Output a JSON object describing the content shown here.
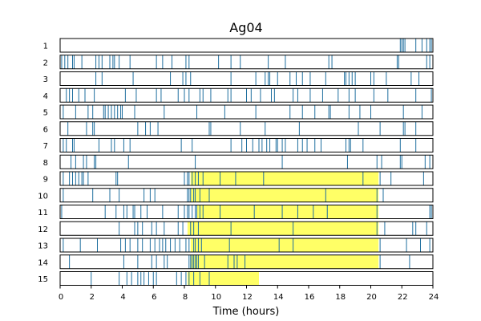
{
  "chart_data": {
    "type": "event-raster",
    "title": "Ag04",
    "xlabel": "Time (hours)",
    "ylabel": "",
    "xlim": [
      0,
      24
    ],
    "xticks": [
      0,
      2,
      4,
      6,
      8,
      10,
      12,
      14,
      16,
      18,
      20,
      22,
      24
    ],
    "grid": false,
    "colors": {
      "event": "#1f6f9f",
      "highlight": "#ffff66",
      "frame": "#000000"
    },
    "rows": [
      {
        "label": "1",
        "highlight": null,
        "events": [
          21.9,
          22.0,
          22.1,
          22.2,
          22.9,
          23.3,
          23.6,
          23.8,
          23.9
        ]
      },
      {
        "label": "2",
        "highlight": null,
        "events": [
          0.1,
          0.3,
          0.5,
          0.8,
          0.9,
          1.4,
          2.3,
          2.5,
          2.7,
          3.2,
          3.4,
          3.5,
          3.8,
          4.5,
          6.2,
          6.6,
          7.2,
          8.1,
          8.3,
          10.2,
          11.0,
          11.6,
          13.4,
          14.5,
          17.3,
          17.5,
          21.7,
          21.8,
          23.6,
          23.8
        ]
      },
      {
        "label": "3",
        "highlight": null,
        "events": [
          2.3,
          2.7,
          4.7,
          7.1,
          7.9,
          8.1,
          8.4,
          11.0,
          12.6,
          13.2,
          13.4,
          13.5,
          14.0,
          14.8,
          15.2,
          15.6,
          16.1,
          17.1,
          18.3,
          18.4,
          18.6,
          18.8,
          19.0,
          20.0,
          20.2,
          21.0,
          22.6,
          23.1
        ]
      },
      {
        "label": "4",
        "highlight": null,
        "events": [
          0.4,
          0.6,
          0.8,
          1.2,
          1.6,
          2.2,
          4.2,
          4.9,
          6.2,
          6.5,
          7.6,
          8.0,
          8.3,
          9.0,
          9.2,
          9.7,
          10.8,
          11.0,
          12.0,
          12.3,
          12.9,
          13.6,
          13.8,
          15.0,
          15.3,
          16.1,
          16.9,
          17.9,
          18.6,
          19.0,
          20.2,
          21.1,
          22.9,
          23.9
        ]
      },
      {
        "label": "5",
        "highlight": null,
        "events": [
          0.2,
          1.0,
          1.8,
          2.1,
          2.8,
          2.9,
          3.1,
          3.3,
          3.5,
          3.7,
          3.9,
          4.0,
          4.8,
          6.7,
          8.8,
          10.6,
          12.6,
          14.8,
          15.6,
          16.4,
          17.3,
          17.4,
          18.6,
          19.3,
          20.0,
          22.1,
          23.3
        ]
      },
      {
        "label": "6",
        "highlight": null,
        "events": [
          0.5,
          1.7,
          2.1,
          2.2,
          5.0,
          5.5,
          5.8,
          6.3,
          9.6,
          9.7,
          11.6,
          13.2,
          15.4,
          19.2,
          20.6,
          22.1,
          22.2,
          22.9
        ]
      },
      {
        "label": "7",
        "highlight": null,
        "events": [
          0.2,
          0.4,
          0.8,
          0.9,
          2.5,
          3.3,
          3.5,
          4.1,
          4.5,
          7.8,
          8.5,
          11.0,
          11.7,
          12.0,
          12.4,
          12.8,
          13.0,
          13.3,
          13.5,
          13.9,
          14.0,
          14.3,
          14.5,
          15.3,
          15.6,
          15.9,
          16.4,
          16.8,
          18.4,
          18.6,
          18.7,
          19.5,
          21.9,
          22.9
        ]
      },
      {
        "label": "8",
        "highlight": null,
        "events": [
          0.7,
          1.0,
          1.5,
          1.7,
          2.2,
          2.3,
          4.4,
          8.7,
          14.3,
          18.5,
          20.4,
          20.7,
          21.9,
          22.0,
          23.5,
          23.8
        ]
      },
      {
        "label": "9",
        "highlight": [
          8.4,
          20.5
        ],
        "events": [
          0.2,
          0.6,
          0.8,
          1.0,
          1.2,
          1.4,
          1.5,
          1.8,
          3.6,
          3.7,
          8.0,
          8.2,
          8.3,
          8.5,
          8.7,
          8.9,
          9.2,
          10.3,
          11.3,
          13.1,
          19.5,
          20.6,
          21.3,
          23.4
        ]
      },
      {
        "label": "10",
        "highlight": [
          8.4,
          20.5
        ],
        "events": [
          0.2,
          2.1,
          3.2,
          3.8,
          5.4,
          5.8,
          6.1,
          8.2,
          8.3,
          8.4,
          8.6,
          8.7,
          9.0,
          9.6,
          17.1,
          20.4,
          20.8
        ]
      },
      {
        "label": "11",
        "highlight": [
          8.8,
          20.5
        ],
        "events": [
          0.1,
          2.9,
          3.6,
          4.1,
          4.3,
          4.7,
          4.8,
          5.2,
          5.6,
          6.6,
          7.6,
          8.0,
          8.2,
          8.3,
          8.5,
          8.7,
          8.8,
          9.0,
          9.2,
          10.3,
          12.5,
          14.3,
          15.3,
          16.3,
          17.2,
          20.4,
          23.8,
          23.9
        ]
      },
      {
        "label": "12",
        "highlight": [
          8.2,
          20.5
        ],
        "events": [
          3.8,
          4.8,
          5.0,
          5.3,
          5.9,
          6.2,
          6.7,
          7.6,
          7.9,
          8.4,
          8.6,
          8.9,
          11.0,
          15.0,
          20.4,
          20.9,
          22.7,
          22.9,
          23.6
        ]
      },
      {
        "label": "13",
        "highlight": [
          8.4,
          20.5
        ],
        "events": [
          0.2,
          1.3,
          2.4,
          3.9,
          4.2,
          4.5,
          5.0,
          5.3,
          5.8,
          6.1,
          6.4,
          6.6,
          6.8,
          7.1,
          7.4,
          7.7,
          8.1,
          8.3,
          8.6,
          8.7,
          8.9,
          9.1,
          10.9,
          14.1,
          15.0,
          20.6,
          22.3,
          23.2,
          23.8
        ]
      },
      {
        "label": "14",
        "highlight": [
          8.4,
          20.5
        ],
        "events": [
          0.6,
          4.1,
          5.0,
          5.9,
          6.2,
          6.7,
          6.9,
          8.3,
          8.4,
          8.5,
          8.6,
          8.7,
          8.8,
          8.9,
          9.3,
          10.8,
          11.2,
          11.4,
          11.9,
          20.6,
          22.5
        ]
      },
      {
        "label": "15",
        "highlight": [
          8.2,
          12.8
        ],
        "events": [
          2.0,
          3.8,
          4.3,
          4.6,
          5.0,
          5.2,
          5.4,
          5.7,
          6.0,
          6.2,
          7.5,
          7.8,
          8.1,
          8.3,
          8.6,
          9.0,
          9.6
        ]
      }
    ]
  }
}
